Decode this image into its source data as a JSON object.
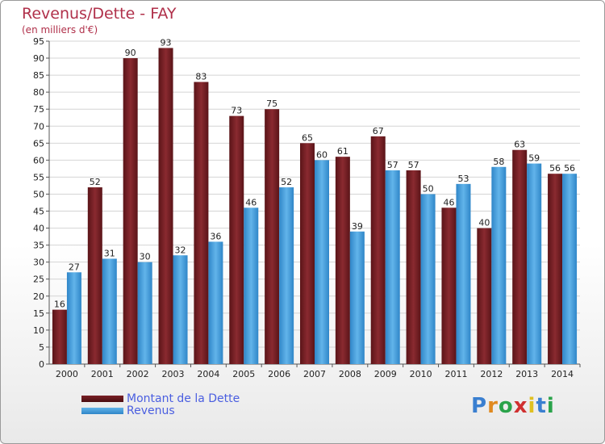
{
  "chart_data": {
    "type": "bar",
    "title": "Revenus/Dette - FAY",
    "subtitle": "(en milliers d'€)",
    "categories": [
      "2000",
      "2001",
      "2002",
      "2003",
      "2004",
      "2005",
      "2006",
      "2007",
      "2008",
      "2009",
      "2010",
      "2011",
      "2012",
      "2013",
      "2014"
    ],
    "series": [
      {
        "name": "Montant de la Dette",
        "color": "#7a1f25",
        "values": [
          16,
          52,
          90,
          93,
          83,
          73,
          75,
          65,
          61,
          67,
          57,
          46,
          40,
          63,
          56
        ]
      },
      {
        "name": "Revenus",
        "color": "#4aa3e0",
        "values": [
          27,
          31,
          30,
          32,
          36,
          46,
          52,
          60,
          39,
          57,
          50,
          53,
          58,
          59,
          56
        ]
      }
    ],
    "ylim": [
      0,
      95
    ],
    "yticks": [
      0,
      5,
      10,
      15,
      20,
      25,
      30,
      35,
      40,
      45,
      50,
      55,
      60,
      65,
      70,
      75,
      80,
      85,
      90,
      95
    ],
    "grid": true,
    "legend_position": "bottom-left"
  },
  "logo": {
    "letters": [
      "P",
      "r",
      "o",
      "x",
      "i",
      "t",
      "i"
    ],
    "colors": [
      "#3a7fd0",
      "#e08a20",
      "#2aa34a",
      "#d03030",
      "#e0c020",
      "#3a7fd0",
      "#2aa34a"
    ]
  }
}
